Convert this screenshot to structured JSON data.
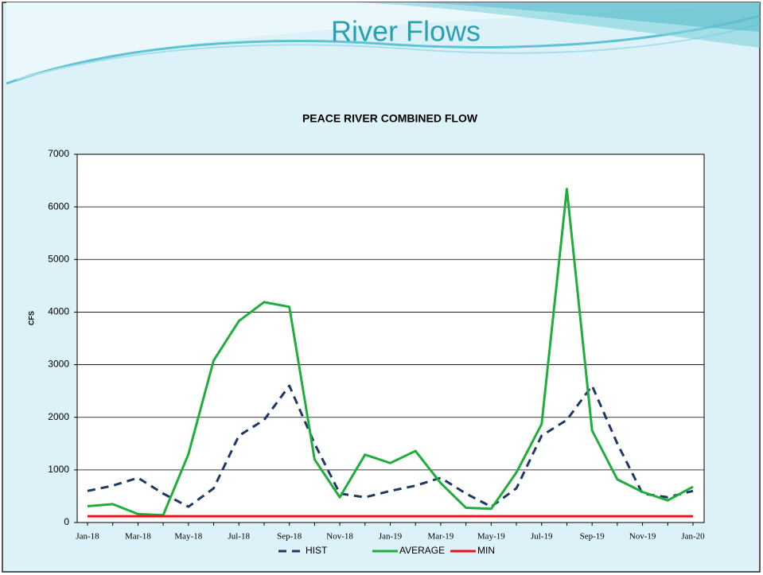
{
  "slide_title": "River Flows",
  "chart_data": {
    "type": "line",
    "title": "PEACE  RIVER COMBINED FLOW",
    "y_label": "CFS",
    "categories": [
      "Jan-18",
      null,
      "Mar-18",
      null,
      "May-18",
      null,
      "Jul-18",
      null,
      "Sep-18",
      null,
      "Nov-18",
      null,
      "Jan-19",
      null,
      "Mar-19",
      null,
      "May-19",
      null,
      "Jul-19",
      null,
      "Sep-19",
      null,
      "Nov-19",
      null,
      "Jan-20"
    ],
    "series": [
      {
        "name": "HIST",
        "color": "#1f3864",
        "dashed": true,
        "values": [
          600,
          700,
          850,
          550,
          300,
          650,
          1650,
          1950,
          2600,
          1500,
          550,
          480,
          600,
          700,
          850,
          550,
          300,
          650,
          1650,
          1950,
          2600,
          1500,
          550,
          480,
          600
        ]
      },
      {
        "name": "AVERAGE",
        "color": "#1fad3c",
        "dashed": false,
        "values": [
          310,
          350,
          160,
          140,
          1300,
          3080,
          3830,
          4190,
          4100,
          1200,
          480,
          1290,
          1130,
          1360,
          750,
          280,
          260,
          950,
          1870,
          6340,
          1750,
          820,
          580,
          420,
          680
        ]
      },
      {
        "name": "MIN",
        "color": "#e8141c",
        "dashed": false,
        "values": [
          120,
          120,
          120,
          120,
          120,
          120,
          120,
          120,
          120,
          120,
          120,
          120,
          120,
          120,
          120,
          120,
          120,
          120,
          120,
          120,
          120,
          120,
          120,
          120,
          120
        ]
      }
    ],
    "ylim": [
      0,
      7000
    ],
    "yticks": [
      0,
      1000,
      2000,
      3000,
      4000,
      5000,
      6000,
      7000
    ],
    "grid": true,
    "legend": "bottom"
  }
}
